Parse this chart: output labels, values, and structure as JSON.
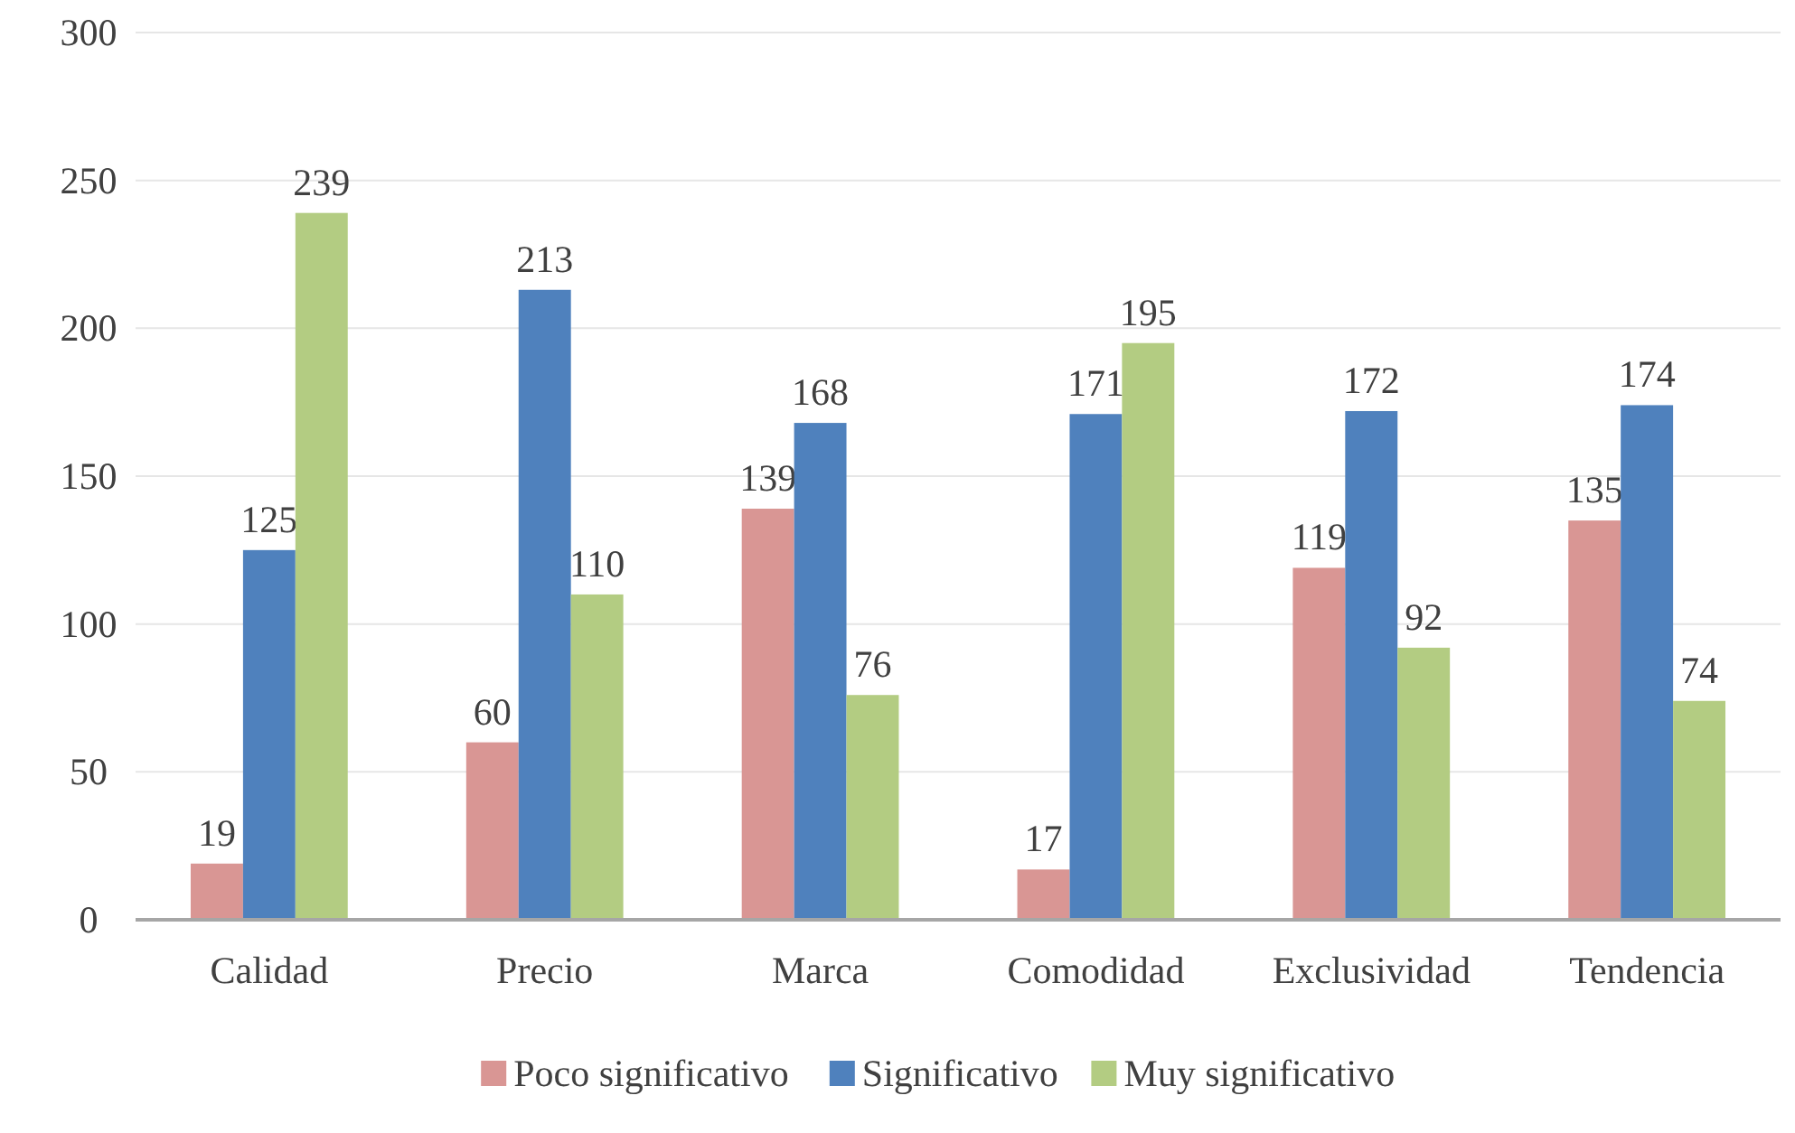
{
  "chart_data": {
    "type": "bar",
    "categories": [
      "Calidad",
      "Precio",
      "Marca",
      "Comodidad",
      "Exclusividad",
      "Tendencia"
    ],
    "series": [
      {
        "name": "Poco significativo",
        "color": "#d99694",
        "values": [
          19,
          60,
          139,
          17,
          119,
          135
        ]
      },
      {
        "name": "Significativo",
        "color": "#4f81bd",
        "values": [
          125,
          213,
          168,
          171,
          172,
          174
        ]
      },
      {
        "name": "Muy significativo",
        "color": "#b3cc82",
        "values": [
          239,
          110,
          76,
          195,
          92,
          74
        ]
      }
    ],
    "ylim": [
      0,
      300
    ],
    "yticks": [
      0,
      50,
      100,
      150,
      200,
      250,
      300
    ],
    "grid": "y",
    "legend": "bottom",
    "data_labels": true
  }
}
